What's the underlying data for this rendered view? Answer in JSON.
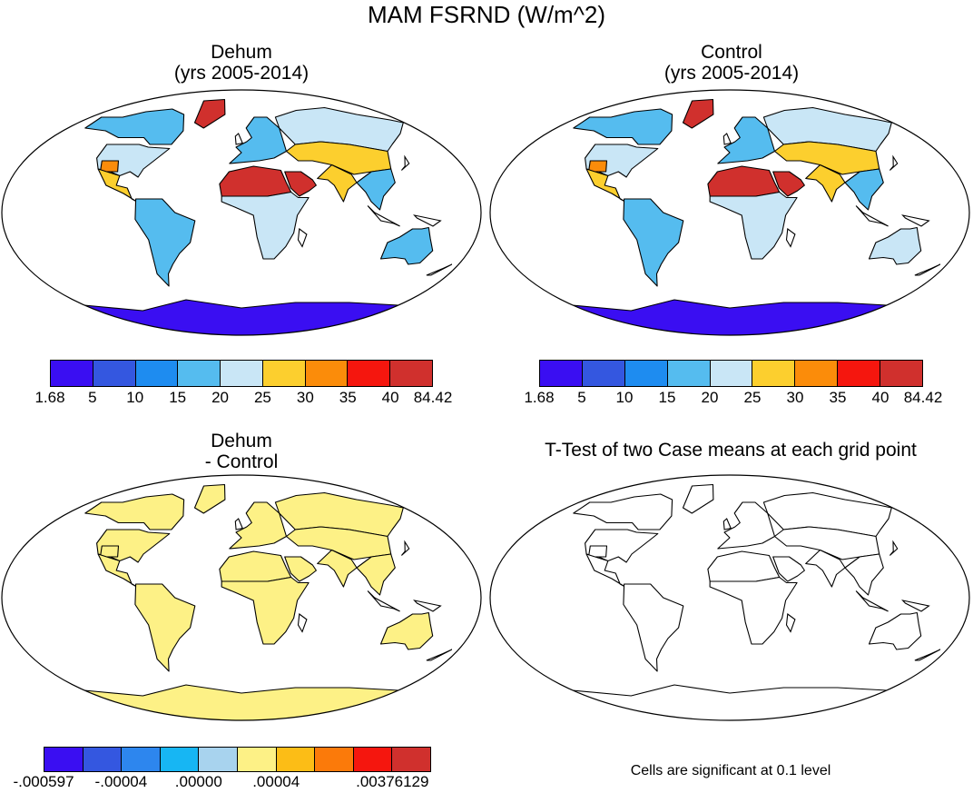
{
  "title": "MAM FSRND (W/m^2)",
  "panels": {
    "dehum": {
      "title_line1": "Dehum",
      "title_line2": "(yrs 2005-2014)"
    },
    "control": {
      "title_line1": "Control",
      "title_line2": "(yrs 2005-2014)"
    },
    "diff": {
      "title_line1": "Dehum",
      "title_line2": "- Control"
    },
    "ttest": {
      "title": "T-Test of two Case means at each grid point",
      "note": "Cells are significant at 0.1 level"
    }
  },
  "colorbar_top": {
    "colors": [
      "#3a0ef2",
      "#3457e0",
      "#1e8cf0",
      "#55bcef",
      "#c9e6f6",
      "#fccf2e",
      "#fb8c0a",
      "#f5160e",
      "#d0302d"
    ],
    "labels": [
      "1.68",
      "5",
      "10",
      "15",
      "20",
      "25",
      "30",
      "35",
      "40",
      "84.42"
    ]
  },
  "colorbar_diff": {
    "colors": [
      "#3a0ef2",
      "#3457e0",
      "#2d86ee",
      "#17b6f3",
      "#a8d3ee",
      "#fdf186",
      "#fcbd16",
      "#fb7a0a",
      "#f5160e",
      "#d0302d"
    ],
    "labels": [
      "-.000597",
      "",
      "-.00004",
      "",
      ".00000",
      "",
      ".00004",
      "",
      "",
      ".00376129"
    ]
  },
  "map_colors": {
    "ocean": "#ffffff",
    "outline": "#000000",
    "dehum": {
      "north_america": "#c9e6f6",
      "canada": "#55bcef",
      "greenland": "#d0302d",
      "sw_usa": "#fb8c0a",
      "central_america": "#fccf2e",
      "south_america": "#55bcef",
      "europe": "#55bcef",
      "north_asia": "#c9e6f6",
      "central_asia": "#fccf2e",
      "sahara": "#d0302d",
      "africa_south": "#c9e6f6",
      "arabia": "#d0302d",
      "india": "#fccf2e",
      "se_asia": "#55bcef",
      "australia": "#55bcef",
      "antarctica": "#3a0ef2"
    },
    "control": {
      "north_america": "#c9e6f6",
      "canada": "#55bcef",
      "greenland": "#d0302d",
      "sw_usa": "#fb8c0a",
      "central_america": "#fccf2e",
      "south_america": "#55bcef",
      "europe": "#55bcef",
      "north_asia": "#c9e6f6",
      "central_asia": "#fccf2e",
      "sahara": "#d0302d",
      "africa_south": "#c9e6f6",
      "arabia": "#d0302d",
      "india": "#fccf2e",
      "se_asia": "#55bcef",
      "australia": "#c9e6f6",
      "antarctica": "#3a0ef2"
    },
    "diff_land": "#fdf186",
    "ttest_land": "#ffffff"
  }
}
